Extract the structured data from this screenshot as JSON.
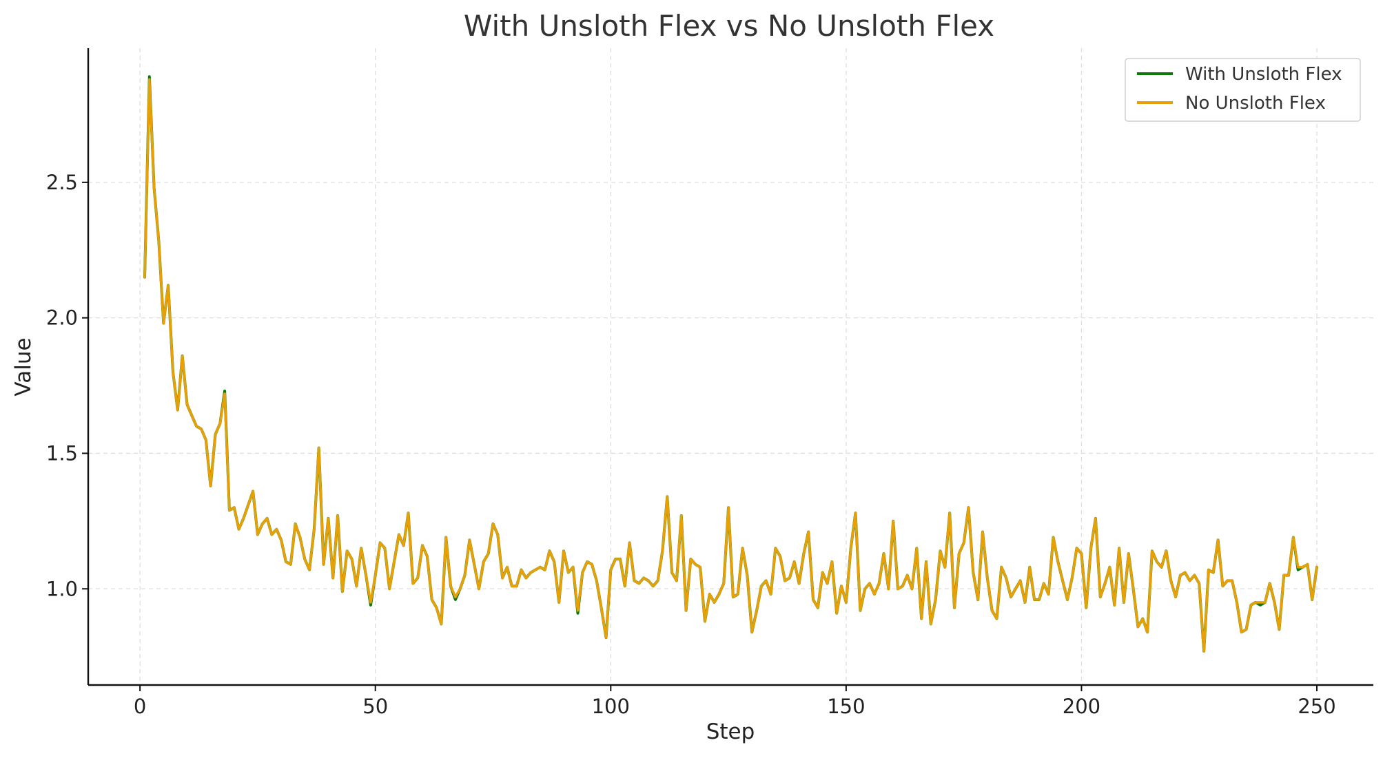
{
  "chart_data": {
    "type": "line",
    "title": "With Unsloth Flex vs No Unsloth Flex",
    "xlabel": "Step",
    "ylabel": "Value",
    "xlim": [
      -11,
      262
    ],
    "ylim": [
      0.645,
      2.995
    ],
    "x_ticks": [
      0,
      50,
      100,
      150,
      200,
      250
    ],
    "y_ticks": [
      1.0,
      1.5,
      2.0,
      2.5
    ],
    "x_tick_labels": [
      "0",
      "50",
      "100",
      "150",
      "200",
      "250"
    ],
    "y_tick_labels": [
      "1.0",
      "1.5",
      "2.0",
      "2.5"
    ],
    "grid": true,
    "legend_position": "top-right",
    "x": [
      1,
      2,
      3,
      4,
      5,
      6,
      7,
      8,
      9,
      10,
      11,
      12,
      13,
      14,
      15,
      16,
      17,
      18,
      19,
      20,
      21,
      22,
      23,
      24,
      25,
      26,
      27,
      28,
      29,
      30,
      31,
      32,
      33,
      34,
      35,
      36,
      37,
      38,
      39,
      40,
      41,
      42,
      43,
      44,
      45,
      46,
      47,
      48,
      49,
      50,
      51,
      52,
      53,
      54,
      55,
      56,
      57,
      58,
      59,
      60,
      61,
      62,
      63,
      64,
      65,
      66,
      67,
      68,
      69,
      70,
      71,
      72,
      73,
      74,
      75,
      76,
      77,
      78,
      79,
      80,
      81,
      82,
      83,
      84,
      85,
      86,
      87,
      88,
      89,
      90,
      91,
      92,
      93,
      94,
      95,
      96,
      97,
      98,
      99,
      100,
      101,
      102,
      103,
      104,
      105,
      106,
      107,
      108,
      109,
      110,
      111,
      112,
      113,
      114,
      115,
      116,
      117,
      118,
      119,
      120,
      121,
      122,
      123,
      124,
      125,
      126,
      127,
      128,
      129,
      130,
      131,
      132,
      133,
      134,
      135,
      136,
      137,
      138,
      139,
      140,
      141,
      142,
      143,
      144,
      145,
      146,
      147,
      148,
      149,
      150,
      151,
      152,
      153,
      154,
      155,
      156,
      157,
      158,
      159,
      160,
      161,
      162,
      163,
      164,
      165,
      166,
      167,
      168,
      169,
      170,
      171,
      172,
      173,
      174,
      175,
      176,
      177,
      178,
      179,
      180,
      181,
      182,
      183,
      184,
      185,
      186,
      187,
      188,
      189,
      190,
      191,
      192,
      193,
      194,
      195,
      196,
      197,
      198,
      199,
      200,
      201,
      202,
      203,
      204,
      205,
      206,
      207,
      208,
      209,
      210,
      211,
      212,
      213,
      214,
      215,
      216,
      217,
      218,
      219,
      220,
      221,
      222,
      223,
      224,
      225,
      226,
      227,
      228,
      229,
      230,
      231,
      232,
      233,
      234,
      235,
      236,
      237,
      238,
      239,
      240,
      241,
      242,
      243,
      244,
      245,
      246,
      247,
      248,
      249,
      250
    ],
    "series": [
      {
        "name": "With Unsloth Flex",
        "color": "#0b7a0b",
        "values": [
          2.15,
          2.89,
          2.48,
          2.28,
          1.98,
          2.12,
          1.8,
          1.66,
          1.86,
          1.68,
          1.64,
          1.6,
          1.59,
          1.55,
          1.38,
          1.57,
          1.61,
          1.73,
          1.29,
          1.3,
          1.22,
          1.26,
          1.31,
          1.36,
          1.2,
          1.24,
          1.26,
          1.2,
          1.22,
          1.18,
          1.1,
          1.09,
          1.24,
          1.19,
          1.11,
          1.07,
          1.22,
          1.52,
          1.09,
          1.26,
          1.04,
          1.27,
          0.99,
          1.14,
          1.11,
          1.01,
          1.15,
          1.05,
          0.94,
          1.05,
          1.17,
          1.15,
          1.0,
          1.1,
          1.2,
          1.16,
          1.28,
          1.02,
          1.04,
          1.16,
          1.12,
          0.96,
          0.93,
          0.87,
          1.19,
          1.01,
          0.96,
          1.0,
          1.05,
          1.18,
          1.09,
          1.0,
          1.1,
          1.13,
          1.24,
          1.2,
          1.04,
          1.08,
          1.01,
          1.01,
          1.07,
          1.04,
          1.06,
          1.07,
          1.08,
          1.07,
          1.14,
          1.1,
          0.95,
          1.14,
          1.06,
          1.08,
          0.91,
          1.06,
          1.1,
          1.09,
          1.03,
          0.93,
          0.82,
          1.07,
          1.11,
          1.11,
          1.01,
          1.17,
          1.03,
          1.02,
          1.04,
          1.03,
          1.01,
          1.03,
          1.14,
          1.34,
          1.06,
          1.03,
          1.27,
          0.92,
          1.11,
          1.09,
          1.08,
          0.88,
          0.98,
          0.95,
          0.98,
          1.02,
          1.3,
          0.97,
          0.98,
          1.15,
          1.05,
          0.84,
          0.92,
          1.01,
          1.03,
          0.98,
          1.15,
          1.12,
          1.03,
          1.04,
          1.1,
          1.02,
          1.13,
          1.21,
          0.96,
          0.93,
          1.06,
          1.02,
          1.1,
          0.91,
          1.01,
          0.95,
          1.15,
          1.28,
          0.92,
          1.0,
          1.02,
          0.98,
          1.02,
          1.13,
          1.0,
          1.25,
          1.0,
          1.01,
          1.05,
          1.0,
          1.15,
          0.89,
          1.1,
          0.87,
          0.96,
          1.14,
          1.08,
          1.28,
          0.93,
          1.13,
          1.17,
          1.3,
          1.06,
          0.96,
          1.21,
          1.04,
          0.92,
          0.89,
          1.08,
          1.04,
          0.97,
          1.0,
          1.03,
          0.95,
          1.08,
          0.96,
          0.96,
          1.02,
          0.98,
          1.19,
          1.1,
          1.03,
          0.96,
          1.04,
          1.15,
          1.13,
          0.93,
          1.15,
          1.26,
          0.97,
          1.02,
          1.08,
          0.94,
          1.15,
          0.95,
          1.13,
          1.0,
          0.86,
          0.89,
          0.84,
          1.14,
          1.1,
          1.08,
          1.14,
          1.03,
          0.97,
          1.05,
          1.06,
          1.03,
          1.05,
          1.02,
          0.77,
          1.07,
          1.06,
          1.18,
          1.01,
          1.03,
          1.03,
          0.95,
          0.84,
          0.85,
          0.94,
          0.95,
          0.94,
          0.95,
          1.02,
          0.95,
          0.85,
          1.05,
          1.05,
          1.19,
          1.07,
          1.08,
          1.09,
          0.96,
          1.08
        ]
      },
      {
        "name": "No Unsloth Flex",
        "color": "#e8a007",
        "values": [
          2.15,
          2.88,
          2.48,
          2.28,
          1.98,
          2.12,
          1.8,
          1.66,
          1.86,
          1.68,
          1.64,
          1.6,
          1.59,
          1.55,
          1.38,
          1.57,
          1.61,
          1.72,
          1.29,
          1.3,
          1.22,
          1.26,
          1.31,
          1.36,
          1.2,
          1.24,
          1.26,
          1.2,
          1.22,
          1.18,
          1.1,
          1.09,
          1.24,
          1.19,
          1.11,
          1.07,
          1.22,
          1.52,
          1.09,
          1.26,
          1.04,
          1.27,
          0.99,
          1.14,
          1.11,
          1.01,
          1.15,
          1.05,
          0.95,
          1.05,
          1.17,
          1.15,
          1.0,
          1.1,
          1.2,
          1.16,
          1.28,
          1.02,
          1.04,
          1.16,
          1.12,
          0.96,
          0.93,
          0.87,
          1.19,
          1.01,
          0.97,
          1.0,
          1.05,
          1.18,
          1.09,
          1.0,
          1.1,
          1.13,
          1.24,
          1.2,
          1.04,
          1.08,
          1.01,
          1.01,
          1.07,
          1.04,
          1.06,
          1.07,
          1.08,
          1.07,
          1.14,
          1.1,
          0.95,
          1.14,
          1.06,
          1.08,
          0.92,
          1.06,
          1.1,
          1.09,
          1.03,
          0.93,
          0.82,
          1.07,
          1.11,
          1.11,
          1.01,
          1.17,
          1.03,
          1.02,
          1.04,
          1.03,
          1.01,
          1.03,
          1.14,
          1.34,
          1.06,
          1.03,
          1.27,
          0.92,
          1.11,
          1.09,
          1.08,
          0.88,
          0.98,
          0.95,
          0.98,
          1.02,
          1.3,
          0.97,
          0.98,
          1.15,
          1.05,
          0.84,
          0.92,
          1.01,
          1.03,
          0.98,
          1.15,
          1.12,
          1.03,
          1.04,
          1.1,
          1.02,
          1.13,
          1.21,
          0.96,
          0.93,
          1.06,
          1.02,
          1.1,
          0.91,
          1.01,
          0.95,
          1.15,
          1.28,
          0.92,
          1.0,
          1.02,
          0.98,
          1.02,
          1.13,
          1.0,
          1.25,
          1.0,
          1.01,
          1.05,
          1.0,
          1.15,
          0.89,
          1.1,
          0.87,
          0.96,
          1.14,
          1.08,
          1.28,
          0.93,
          1.13,
          1.17,
          1.3,
          1.06,
          0.96,
          1.21,
          1.04,
          0.92,
          0.89,
          1.08,
          1.04,
          0.97,
          1.0,
          1.03,
          0.95,
          1.08,
          0.96,
          0.96,
          1.02,
          0.98,
          1.19,
          1.1,
          1.03,
          0.96,
          1.04,
          1.15,
          1.13,
          0.93,
          1.15,
          1.26,
          0.97,
          1.02,
          1.08,
          0.94,
          1.15,
          0.95,
          1.13,
          1.0,
          0.86,
          0.89,
          0.84,
          1.14,
          1.1,
          1.08,
          1.14,
          1.03,
          0.97,
          1.05,
          1.06,
          1.03,
          1.05,
          1.02,
          0.77,
          1.07,
          1.06,
          1.18,
          1.01,
          1.03,
          1.03,
          0.95,
          0.84,
          0.85,
          0.94,
          0.95,
          0.95,
          0.95,
          1.02,
          0.95,
          0.85,
          1.05,
          1.05,
          1.19,
          1.08,
          1.08,
          1.09,
          0.96,
          1.08
        ]
      }
    ]
  }
}
